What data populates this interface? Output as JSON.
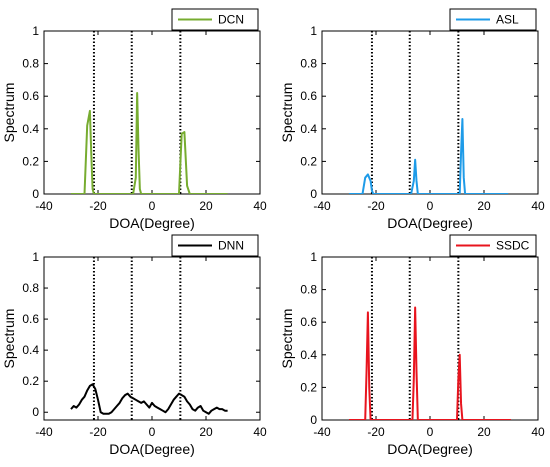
{
  "chart_data": [
    {
      "type": "line",
      "xlabel": "DOA(Degree)",
      "ylabel": "Spectrum",
      "xlim": [
        -40,
        40
      ],
      "ylim": [
        0,
        1
      ],
      "xticks": [
        "-40",
        "-20",
        "0",
        "20",
        "40"
      ],
      "yticks": [
        "0",
        "0.2",
        "0.4",
        "0.6",
        "0.8",
        "1"
      ],
      "legend_position": "top-right",
      "true_doa": [
        -21.5,
        -7.5,
        10.5
      ],
      "series": [
        {
          "name": "DCN",
          "color": "#77ac30",
          "x": [
            -30,
            -25,
            -24,
            -23,
            -22.5,
            -22,
            -21.5,
            -21,
            -8,
            -7,
            -6,
            -5.5,
            -5,
            -4.5,
            -4,
            10,
            11,
            12,
            13,
            14,
            28
          ],
          "y": [
            0,
            0,
            0.42,
            0.51,
            0.25,
            0.03,
            0,
            0,
            0,
            0,
            0.1,
            0.62,
            0.28,
            0.03,
            0,
            0,
            0.37,
            0.38,
            0.05,
            0,
            0
          ]
        }
      ]
    },
    {
      "type": "line",
      "xlabel": "DOA(Degree)",
      "ylabel": "Spectrum",
      "xlim": [
        -40,
        40
      ],
      "ylim": [
        0,
        1
      ],
      "xticks": [
        "-40",
        "-20",
        "0",
        "20",
        "40"
      ],
      "yticks": [
        "0",
        "0.2",
        "0.4",
        "0.6",
        "0.8",
        "1"
      ],
      "legend_position": "top-right",
      "true_doa": [
        -21.5,
        -7.5,
        10.5
      ],
      "series": [
        {
          "name": "ASL",
          "color": "#1e9be8",
          "x": [
            -30,
            -25,
            -24,
            -23,
            -22,
            -21.5,
            -21,
            -7,
            -6,
            -5.5,
            -5,
            -4.5,
            10,
            11,
            11.5,
            12,
            12.5,
            13,
            29
          ],
          "y": [
            0,
            0,
            0.1,
            0.12,
            0.08,
            0.02,
            0,
            0,
            0.08,
            0.21,
            0.08,
            0,
            0,
            0,
            0.25,
            0.46,
            0.1,
            0,
            0
          ]
        }
      ]
    },
    {
      "type": "line",
      "xlabel": "DOA(Degree)",
      "ylabel": "Spectrum",
      "xlim": [
        -40,
        40
      ],
      "ylim": [
        -0.05,
        1
      ],
      "xticks": [
        "-40",
        "-20",
        "0",
        "20",
        "40"
      ],
      "yticks": [
        "0",
        "0.2",
        "0.4",
        "0.6",
        "0.8",
        "1"
      ],
      "legend_position": "top-right",
      "true_doa": [
        -21.5,
        -7.5,
        10.5
      ],
      "series": [
        {
          "name": "DNN",
          "color": "#000000",
          "x": [
            -30,
            -29,
            -28,
            -27,
            -26,
            -25,
            -24,
            -23,
            -22,
            -21,
            -20,
            -19,
            -18,
            -17,
            -16,
            -15,
            -14,
            -13,
            -12,
            -11,
            -10,
            -9,
            -8,
            -7,
            -6,
            -5,
            -4,
            -3,
            -2,
            -1,
            0,
            1,
            2,
            3,
            4,
            5,
            6,
            7,
            8,
            9,
            10,
            11,
            12,
            13,
            14,
            15,
            16,
            17,
            18,
            19,
            20,
            21,
            22,
            23,
            24,
            25,
            26,
            27,
            28
          ],
          "y": [
            0.02,
            0.04,
            0.03,
            0.05,
            0.08,
            0.1,
            0.14,
            0.17,
            0.18,
            0.15,
            0.08,
            0.0,
            -0.01,
            -0.01,
            -0.01,
            0.0,
            0.02,
            0.04,
            0.06,
            0.09,
            0.11,
            0.12,
            0.1,
            0.09,
            0.08,
            0.07,
            0.06,
            0.07,
            0.05,
            0.03,
            0.06,
            0.04,
            0.03,
            0.02,
            0.01,
            0.0,
            0.02,
            0.05,
            0.08,
            0.1,
            0.12,
            0.11,
            0.1,
            0.07,
            0.05,
            0.02,
            0.01,
            0.03,
            0.04,
            0.01,
            0.0,
            -0.01,
            0.01,
            0.02,
            0.03,
            0.02,
            0.02,
            0.01,
            0.01
          ]
        }
      ]
    },
    {
      "type": "line",
      "xlabel": "DOA(Degree)",
      "ylabel": "Spectrum",
      "xlim": [
        -40,
        40
      ],
      "ylim": [
        0,
        1
      ],
      "xticks": [
        "-40",
        "-20",
        "0",
        "20",
        "40"
      ],
      "yticks": [
        "0",
        "0.2",
        "0.4",
        "0.6",
        "0.8",
        "1"
      ],
      "legend_position": "top-right",
      "true_doa": [
        -21.5,
        -7.5,
        10.5
      ],
      "series": [
        {
          "name": "SSDC",
          "color": "#e8141e",
          "x": [
            -30,
            -24,
            -23.5,
            -23,
            -22.5,
            -22,
            -8,
            -6.5,
            -6,
            -5.5,
            -5,
            -4.5,
            9,
            10,
            10.5,
            11,
            11.5,
            12,
            30
          ],
          "y": [
            0,
            0,
            0.3,
            0.66,
            0.2,
            0,
            0,
            0,
            0.25,
            0.69,
            0.3,
            0,
            0,
            0,
            0.25,
            0.4,
            0.1,
            0,
            0
          ]
        }
      ]
    }
  ]
}
